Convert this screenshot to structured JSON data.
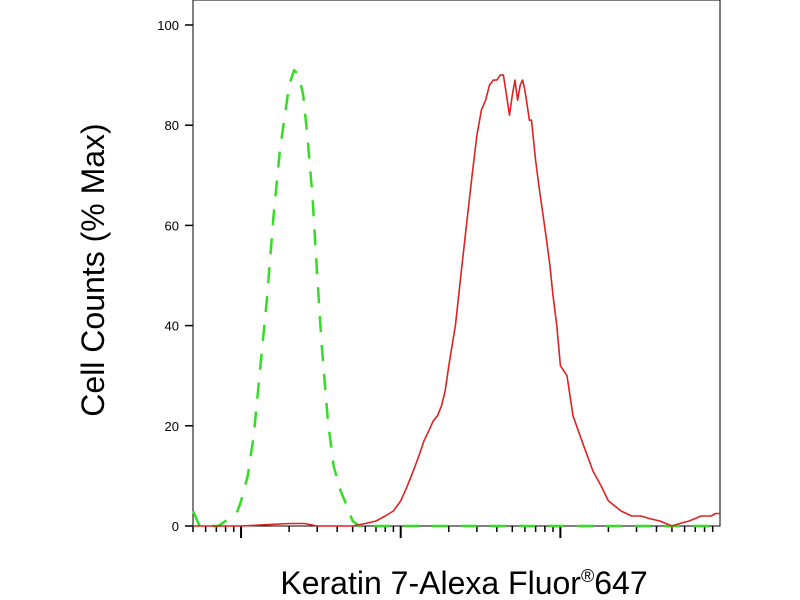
{
  "chart_data": {
    "type": "line",
    "title": "",
    "xlabel": "Keratin 7-Alexa Fluor",
    "xlabel_sup": "®",
    "xlabel_suffix": "647",
    "ylabel": "Cell Counts (% Max)",
    "ylim": [
      0,
      100
    ],
    "yticks": [
      0,
      20,
      40,
      60,
      80,
      100
    ],
    "xscale": "log",
    "xlim": [
      0.5,
      1000
    ],
    "x_major_ticks": [
      1,
      10,
      100
    ],
    "grid": false,
    "legend": "none",
    "series": [
      {
        "style": "dashed",
        "color": "#33dd22",
        "x": [
          0.5,
          0.55,
          0.6,
          0.65,
          0.72,
          0.8,
          0.87,
          0.95,
          1.0,
          1.1,
          1.2,
          1.35,
          1.45,
          1.6,
          1.75,
          1.9,
          2.0,
          2.15,
          2.3,
          2.45,
          2.6,
          2.8,
          3.0,
          3.2,
          3.5,
          3.8,
          4.2,
          4.6,
          5.0,
          5.5,
          6.0,
          7.0,
          8.0,
          10,
          20,
          50,
          100,
          200,
          500,
          1000
        ],
        "y": [
          3,
          0,
          0,
          0,
          0,
          1,
          2,
          3,
          5,
          10,
          18,
          35,
          45,
          62,
          75,
          83,
          88,
          91,
          90,
          86,
          78,
          66,
          50,
          36,
          21,
          12,
          7,
          4,
          1,
          0,
          0,
          0,
          0,
          0,
          0,
          0,
          0,
          0,
          0,
          0
        ]
      },
      {
        "style": "solid",
        "color": "#dd2222",
        "x": [
          0.5,
          1.0,
          2.0,
          2.5,
          3.0,
          4.0,
          5.0,
          6.0,
          7.0,
          8.0,
          9.0,
          10,
          11,
          12,
          13,
          14,
          15,
          16,
          17,
          18,
          19,
          20,
          22,
          24,
          26,
          28,
          30,
          32,
          34,
          36,
          38,
          40,
          42,
          44,
          46,
          48,
          50,
          52,
          54,
          56,
          58,
          60,
          62,
          64,
          66,
          70,
          74,
          78,
          82,
          86,
          90,
          95,
          100,
          110,
          120,
          140,
          160,
          180,
          200,
          240,
          280,
          320,
          360,
          420,
          500,
          560,
          640,
          700,
          760,
          820,
          880,
          940,
          1000
        ],
        "y": [
          0,
          0,
          0.5,
          0.5,
          0,
          0,
          0,
          0.5,
          1,
          2,
          3,
          5,
          8,
          11,
          14,
          17,
          19,
          21,
          22,
          24,
          27,
          32,
          40,
          51,
          61,
          70,
          78,
          83,
          85,
          88,
          89,
          89,
          90,
          90,
          86,
          82,
          86,
          89,
          85,
          88,
          89,
          87,
          84,
          81,
          81,
          73,
          67,
          62,
          57,
          52,
          46,
          40,
          32,
          30,
          22,
          16,
          11,
          8,
          5,
          3,
          2,
          2,
          1.5,
          1,
          0,
          0.5,
          1,
          1.5,
          2,
          2,
          2,
          2.5,
          2.5
        ]
      }
    ]
  }
}
